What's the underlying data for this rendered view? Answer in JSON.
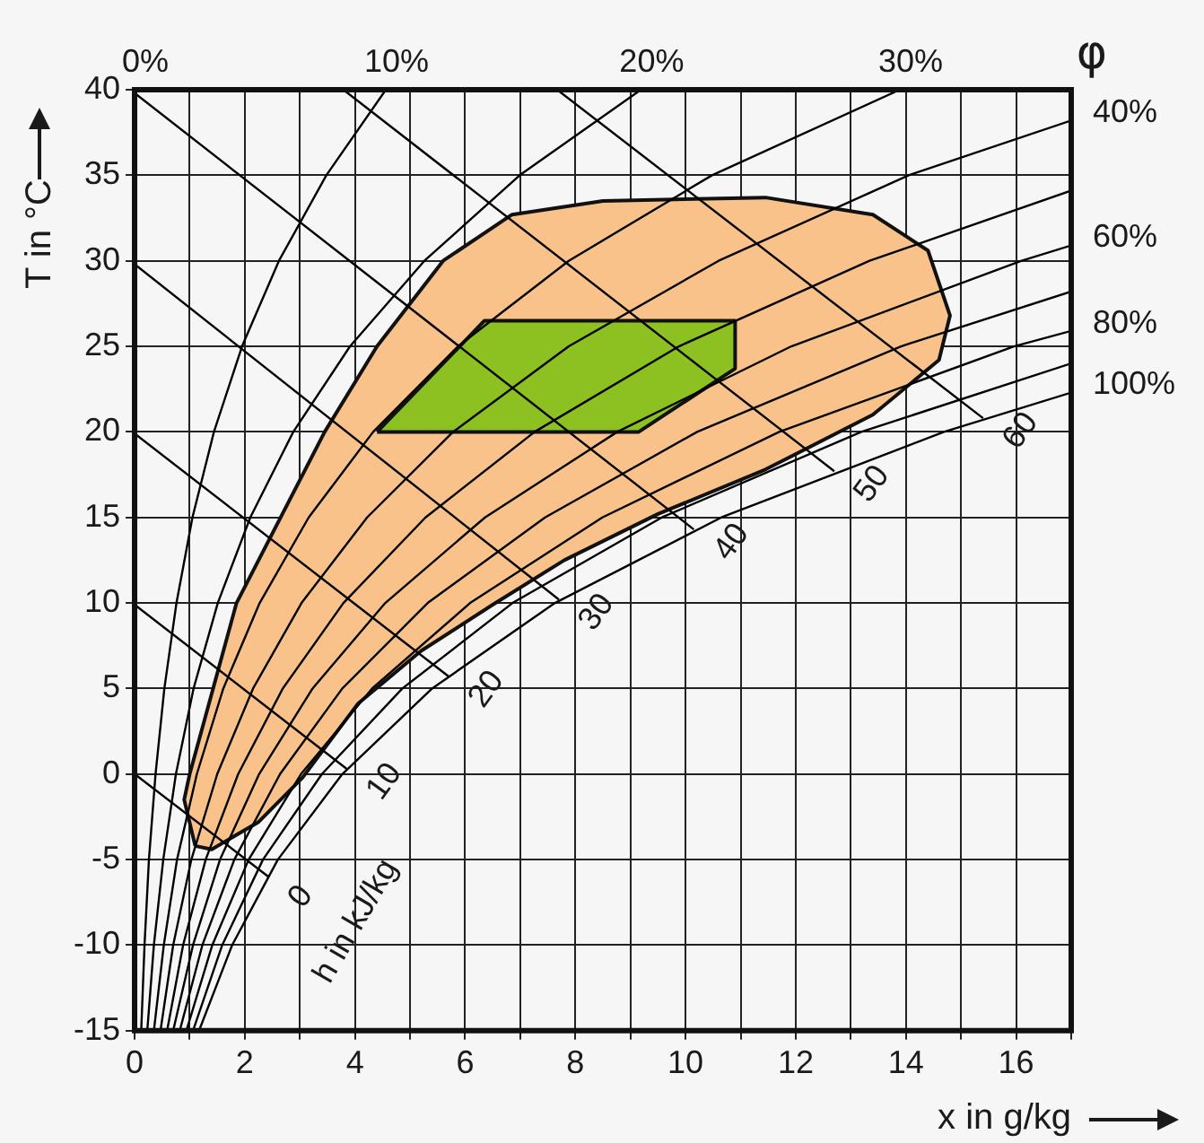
{
  "chart_data": {
    "type": "line",
    "xlabel": "x in g/kg",
    "ylabel": "T in °C",
    "xlim": [
      0,
      17
    ],
    "ylim": [
      -15,
      40
    ],
    "xticks": [
      0,
      {
        "value": 1,
        "label": null
      },
      2,
      {
        "value": 3,
        "label": null
      },
      4,
      {
        "value": 5,
        "label": null
      },
      6,
      {
        "value": 7,
        "label": null
      },
      8,
      {
        "value": 9,
        "label": null
      },
      10,
      {
        "value": 11,
        "label": null
      },
      12,
      {
        "value": 13,
        "label": null
      },
      14,
      {
        "value": 15,
        "label": null
      },
      16,
      {
        "value": 17,
        "label": null
      }
    ],
    "yticks": [
      -15,
      -10,
      -5,
      0,
      5,
      10,
      15,
      20,
      25,
      30,
      35,
      40
    ],
    "grid": true,
    "legend": false,
    "marker": "none",
    "line_style": "solid",
    "annotations": [
      "φ",
      "h in kJ/kg"
    ],
    "series": [
      {
        "type": "area",
        "color": "#f8c28a",
        "x": [
          1.1,
          0.9,
          1.0,
          1.85,
          3.45,
          4.4,
          5.6,
          6.85,
          8.5,
          11.45,
          13.4,
          14.4,
          14.8,
          14.6,
          13.4,
          11.45,
          9.5,
          7.8,
          6.5,
          5.2,
          4.05,
          3.05,
          2.25,
          1.4,
          1.1
        ],
        "values": [
          -4.2,
          -1.5,
          0,
          10,
          20,
          25,
          30,
          32.7,
          33.5,
          33.7,
          32.7,
          30.6,
          26.8,
          24.2,
          21,
          17.8,
          15.2,
          12.5,
          9.9,
          7.2,
          4.1,
          -0.2,
          -2.8,
          -4.4,
          -4.2
        ]
      },
      {
        "type": "area",
        "color": "#8dc021",
        "x": [
          4.4,
          6.35,
          10.9,
          10.9,
          9.15,
          4.4
        ],
        "values": [
          20,
          26.5,
          26.5,
          23.7,
          20,
          20
        ]
      },
      {
        "name": "0%",
        "color": "#000000",
        "x": [
          0,
          0
        ],
        "values": [
          -15,
          40
        ]
      },
      {
        "name": "10%",
        "color": "#000000",
        "x": [
          0.12,
          0.18,
          0.26,
          0.38,
          0.54,
          0.76,
          1.05,
          1.44,
          1.95,
          2.62,
          3.48,
          4.56
        ],
        "values": [
          -15,
          -10,
          -5,
          0,
          5,
          10,
          15,
          20,
          25,
          30,
          35,
          40
        ]
      },
      {
        "name": "20%",
        "color": "#000000",
        "x": [
          0.23,
          0.35,
          0.52,
          0.75,
          1.07,
          1.51,
          2.1,
          2.88,
          3.91,
          5.26,
          6.99,
          9.19
        ],
        "values": [
          -15,
          -10,
          -5,
          0,
          5,
          10,
          15,
          20,
          25,
          30,
          35,
          40
        ]
      },
      {
        "name": "30%",
        "color": "#000000",
        "x": [
          0.35,
          0.53,
          0.77,
          1.13,
          1.61,
          2.27,
          3.16,
          4.33,
          5.87,
          7.88,
          10.48,
          13.89
        ],
        "values": [
          -15,
          -10,
          -5,
          0,
          5,
          10,
          15,
          20,
          25,
          30,
          35,
          40
        ]
      },
      {
        "name": "40%",
        "color": "#000000",
        "x": [
          0.47,
          0.7,
          1.03,
          1.5,
          2.15,
          3.03,
          4.22,
          5.78,
          7.88,
          10.6,
          14.05,
          17
        ],
        "values": [
          -15,
          -10,
          -5,
          0,
          5,
          10,
          15,
          20,
          25,
          30,
          35,
          38.2
        ]
      },
      {
        "color": "#000000",
        "x": [
          0.59,
          0.88,
          1.29,
          1.88,
          2.69,
          3.79,
          5.28,
          7.26,
          9.88,
          13.34,
          17
        ],
        "values": [
          -15,
          -10,
          -5,
          0,
          5,
          10,
          15,
          20,
          25,
          30,
          34.1
        ]
      },
      {
        "name": "60%",
        "color": "#000000",
        "x": [
          0.7,
          1.06,
          1.55,
          2.26,
          3.23,
          4.55,
          6.36,
          8.76,
          11.92,
          16.1,
          17
        ],
        "values": [
          -15,
          -10,
          -5,
          0,
          5,
          10,
          15,
          20,
          25,
          30,
          30.9
        ]
      },
      {
        "color": "#000000",
        "x": [
          0.82,
          1.23,
          1.81,
          2.64,
          3.77,
          5.32,
          7.45,
          10.21,
          13.91,
          17
        ],
        "values": [
          -15,
          -10,
          -5,
          0,
          5,
          10,
          15,
          20,
          25,
          28.2
        ]
      },
      {
        "name": "80%",
        "color": "#000000",
        "x": [
          0.94,
          1.41,
          2.07,
          3.02,
          4.31,
          6.09,
          8.49,
          11.7,
          15.96,
          17
        ],
        "values": [
          -15,
          -10,
          -5,
          0,
          5,
          10,
          15,
          20,
          25,
          25.9
        ]
      },
      {
        "color": "#000000",
        "x": [
          1.06,
          1.59,
          2.33,
          3.4,
          4.86,
          6.86,
          9.57,
          13.19,
          17
        ],
        "values": [
          -15,
          -10,
          -5,
          0,
          5,
          10,
          15,
          20,
          24
        ]
      },
      {
        "name": "100%",
        "color": "#000000",
        "x": [
          1.17,
          1.77,
          2.6,
          3.77,
          5.4,
          7.63,
          10.65,
          14.69,
          17
        ],
        "values": [
          -15,
          -10,
          -5,
          0,
          5,
          10,
          15,
          20,
          22.3
        ]
      },
      {
        "name": "0",
        "color": "#000000",
        "x": [
          0,
          2.43
        ],
        "values": [
          0,
          -6
        ]
      },
      {
        "name": "10",
        "color": "#000000",
        "x": [
          0,
          3.85
        ],
        "values": [
          9.9,
          0.3
        ]
      },
      {
        "name": "20",
        "color": "#000000",
        "x": [
          0,
          5.7
        ],
        "values": [
          19.9,
          5.7
        ]
      },
      {
        "name": "30",
        "color": "#000000",
        "x": [
          0,
          7.7
        ],
        "values": [
          29.8,
          10.2
        ]
      },
      {
        "name": "40",
        "color": "#000000",
        "x": [
          0,
          10.15
        ],
        "values": [
          39.8,
          14.3
        ]
      },
      {
        "name": "50",
        "color": "#000000",
        "x": [
          3.79,
          12.7
        ],
        "values": [
          40,
          17.7
        ]
      },
      {
        "name": "60",
        "color": "#000000",
        "x": [
          7.67,
          15.4
        ],
        "values": [
          40,
          20.8
        ]
      }
    ]
  }
}
